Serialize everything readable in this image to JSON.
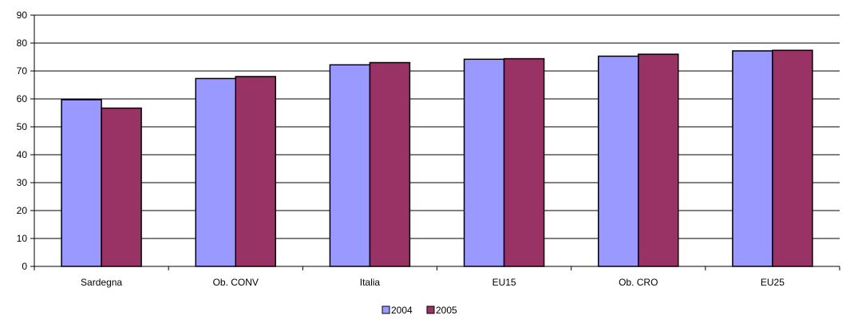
{
  "chart_data": {
    "type": "bar",
    "title": "",
    "xlabel": "",
    "ylabel": "",
    "categories": [
      "Sardegna",
      "Ob. CONV",
      "Italia",
      "EU15",
      "Ob. CRO",
      "EU25"
    ],
    "series": [
      {
        "name": "2004",
        "color": "#9999ff",
        "values": [
          59.7,
          67.3,
          72.2,
          74.2,
          75.3,
          77.2
        ]
      },
      {
        "name": "2005",
        "color": "#993366",
        "values": [
          56.7,
          68.0,
          73.0,
          74.4,
          76.0,
          77.4
        ]
      }
    ],
    "ylim": [
      0,
      90
    ],
    "yticks": [
      0,
      10,
      20,
      30,
      40,
      50,
      60,
      70,
      80,
      90
    ],
    "grid": true,
    "legend_position": "bottom-center"
  }
}
